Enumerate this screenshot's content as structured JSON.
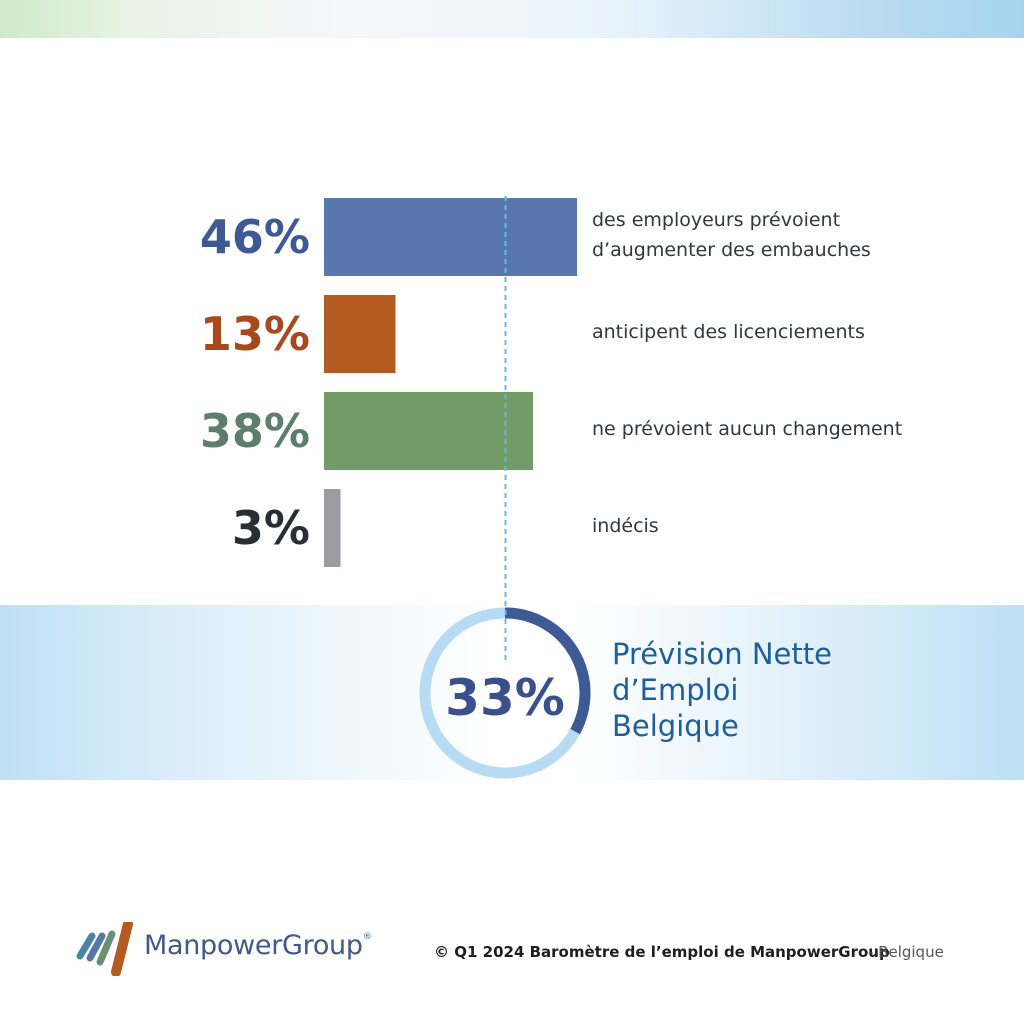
{
  "chart_data": {
    "type": "bar",
    "orientation": "horizontal",
    "categories": [
      "des employeurs prévoient\nd’augmenter des embauches",
      "anticipent des licenciements",
      "ne prévoient aucun changement",
      "indécis"
    ],
    "values": [
      46,
      13,
      38,
      3
    ],
    "value_labels": [
      "46%",
      "13%",
      "38%",
      "3%"
    ],
    "colors": [
      "#5878ad",
      "#b45b21",
      "#719c66",
      "#9b9ba0"
    ],
    "label_colors": [
      "#3d5a94",
      "#a8491c",
      "#5f7d6c",
      "#2b2d35"
    ],
    "reference_line": {
      "value": 33,
      "style": "dashed",
      "color": "#6cb6e6"
    }
  },
  "kpi": {
    "value": "33%",
    "fraction": 0.33,
    "title": "Prévision Nette\nd’Emploi\nBelgique",
    "ring_color": "#3d5a94",
    "ring_track_color": "#b6dbf3"
  },
  "footer": {
    "brand": "ManpowerGroup",
    "registered": "®",
    "copyright": "© Q1 2024 Baromètre de l’emploi de ManpowerGroup",
    "country": "- Belgique",
    "logo_stripe_colors": [
      "#4d84a6",
      "#5579a3",
      "#6b8f73",
      "#b45b21"
    ]
  }
}
